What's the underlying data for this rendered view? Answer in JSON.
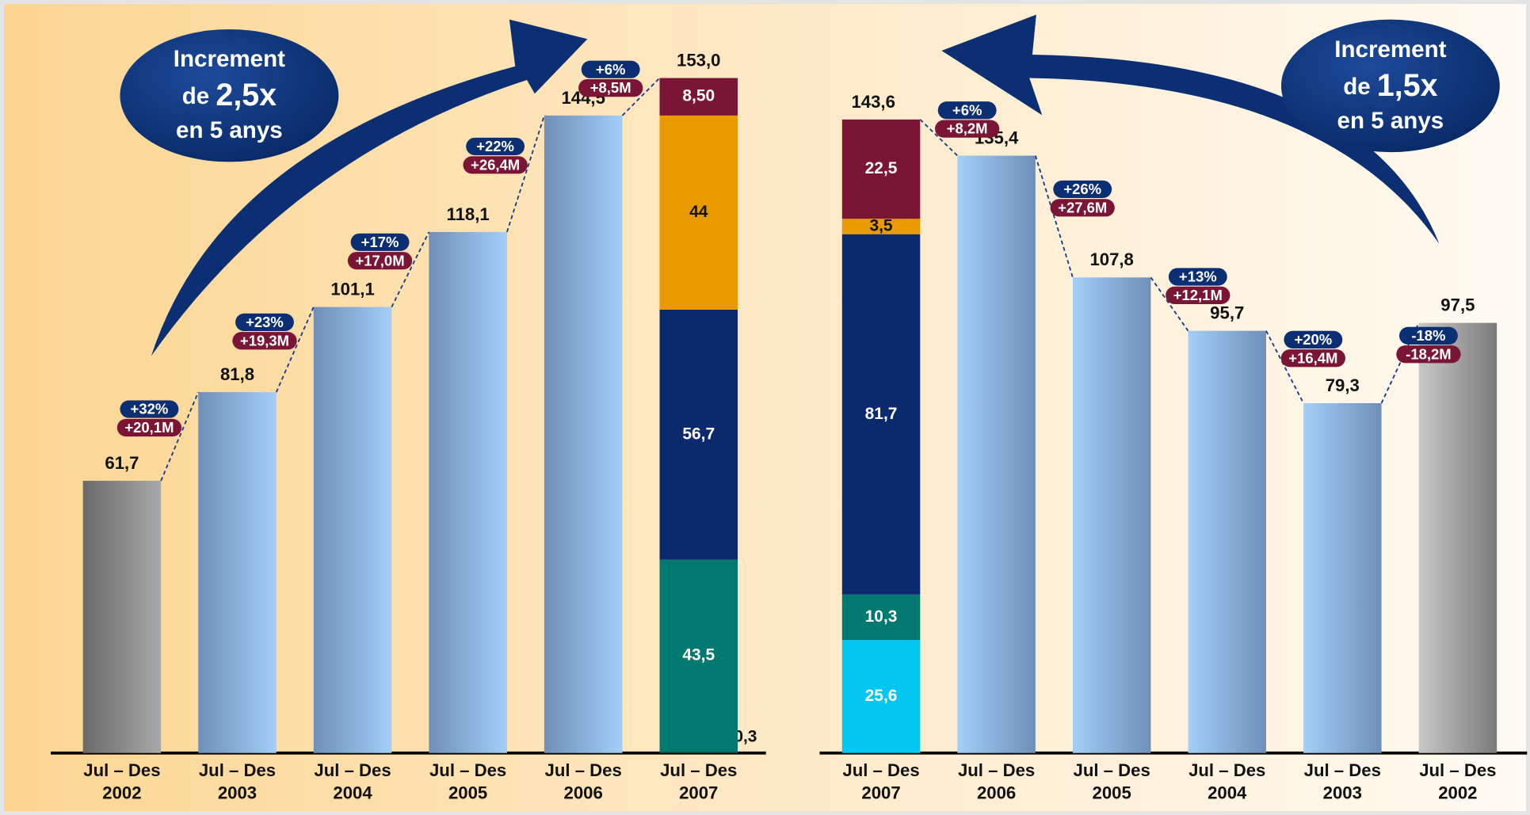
{
  "chart_data": [
    {
      "type": "bar",
      "categories": [
        [
          "Jul – Des",
          "2002"
        ],
        [
          "Jul – Des",
          "2003"
        ],
        [
          "Jul – Des",
          "2004"
        ],
        [
          "Jul – Des",
          "2005"
        ],
        [
          "Jul – Des",
          "2006"
        ],
        [
          "Jul – Des",
          "2007"
        ]
      ],
      "values": [
        61.7,
        81.8,
        101.1,
        118.1,
        144.5,
        153.0
      ],
      "value_labels": [
        "61,7",
        "81,8",
        "101,1",
        "118,1",
        "144,5",
        "153,0"
      ],
      "bar_colors": [
        [
          "#6a6a6a",
          "#a8a8a8"
        ],
        [
          "#6f8fb9",
          "#a2cff8"
        ],
        [
          "#6f8fb9",
          "#a2cff8"
        ],
        [
          "#6f8fb9",
          "#a2cff8"
        ],
        [
          "#6f8fb9",
          "#a2cff8"
        ],
        null
      ],
      "segments": [
        null,
        null,
        null,
        null,
        null,
        {
          "values": [
            0.3,
            43.5,
            56.7,
            44,
            8.5
          ],
          "value_labels": [
            "0,3",
            "43,5",
            "56,7",
            "44",
            "8,50"
          ],
          "colors": [
            "#0d5e58",
            "#007a70",
            "#0b2a6e",
            "#e89a00",
            "#7a1535"
          ]
        }
      ],
      "changes": [
        {
          "pct": "+32%",
          "delta": "+20,1M"
        },
        {
          "pct": "+23%",
          "delta": "+19,3M"
        },
        {
          "pct": "+17%",
          "delta": "+17,0M"
        },
        {
          "pct": "+22%",
          "delta": "+26,4M"
        },
        {
          "pct": "+6%",
          "delta": "+8,5M"
        }
      ],
      "callout": {
        "line1": "Increment",
        "line2": "de",
        "factor": "2,5x",
        "line3": "en 5 anys"
      }
    },
    {
      "type": "bar",
      "categories": [
        [
          "Jul – Des",
          "2007"
        ],
        [
          "Jul – Des",
          "2006"
        ],
        [
          "Jul – Des",
          "2005"
        ],
        [
          "Jul – Des",
          "2004"
        ],
        [
          "Jul – Des",
          "2003"
        ],
        [
          "Jul – Des",
          "2002"
        ]
      ],
      "values": [
        143.6,
        135.4,
        107.8,
        95.7,
        79.3,
        97.5
      ],
      "value_labels": [
        "143,6",
        "135,4",
        "107,8",
        "95,7",
        "79,3",
        "97,5"
      ],
      "bar_colors": [
        null,
        [
          "#a2cff8",
          "#6f8fb9"
        ],
        [
          "#a2cff8",
          "#6f8fb9"
        ],
        [
          "#a2cff8",
          "#6f8fb9"
        ],
        [
          "#a2cff8",
          "#6f8fb9"
        ],
        [
          "#c8c8c8",
          "#7a7a7a"
        ]
      ],
      "segments": [
        {
          "values": [
            25.6,
            10.3,
            81.7,
            3.5,
            22.5
          ],
          "value_labels": [
            "25,6",
            "10,3",
            "81,7",
            "3,5",
            "22,5"
          ],
          "colors": [
            "#00c6f0",
            "#007a70",
            "#0b2a6e",
            "#e89a00",
            "#7a1535"
          ]
        },
        null,
        null,
        null,
        null,
        null
      ],
      "changes": [
        {
          "pct": "+6%",
          "delta": "+8,2M"
        },
        {
          "pct": "+26%",
          "delta": "+27,6M"
        },
        {
          "pct": "+13%",
          "delta": "+12,1M"
        },
        {
          "pct": "+20%",
          "delta": "+16,4M"
        },
        {
          "pct": "-18%",
          "delta": "-18,2M"
        }
      ],
      "callout": {
        "line1": "Increment",
        "line2": "de",
        "factor": "1,5x",
        "line3": "en 5 anys"
      }
    }
  ]
}
